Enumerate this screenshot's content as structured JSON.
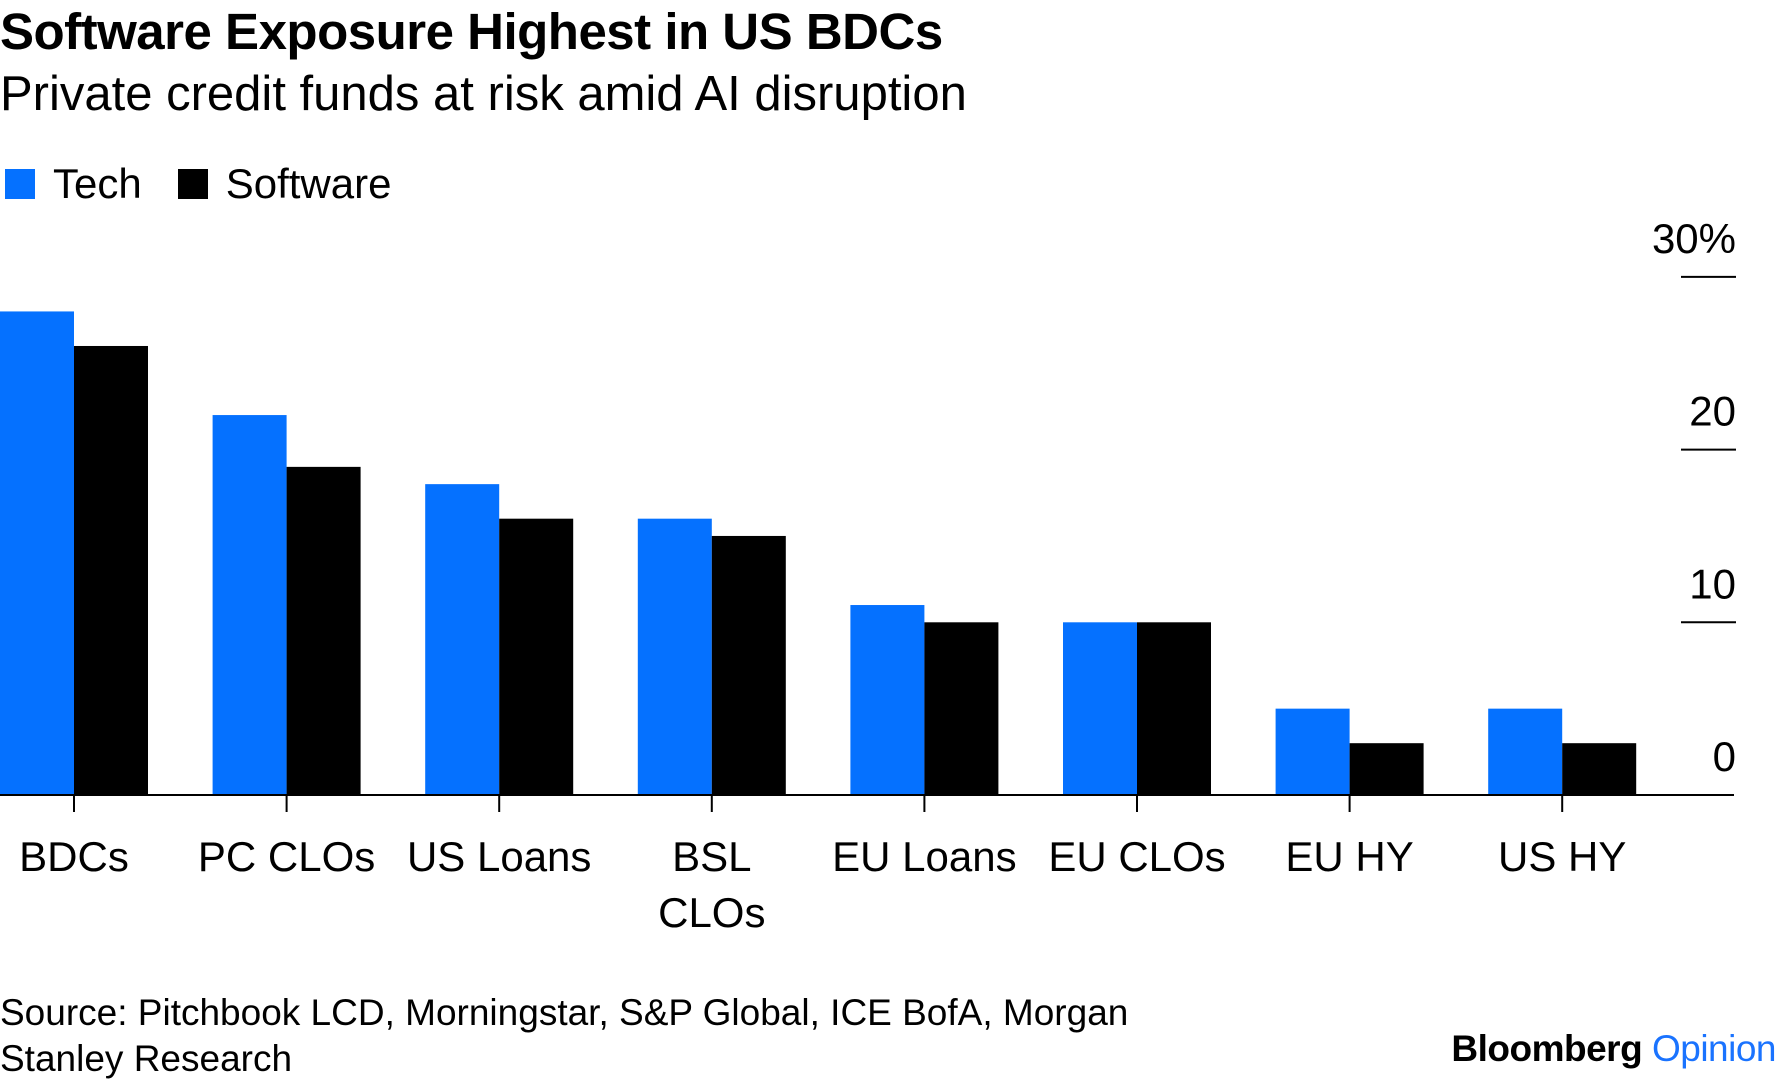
{
  "chart_data": {
    "type": "bar",
    "title": "Software Exposure Highest in US BDCs",
    "subtitle": "Private credit funds at risk amid AI disruption",
    "categories": [
      [
        "BDCs"
      ],
      [
        "PC CLOs"
      ],
      [
        "US Loans"
      ],
      [
        "BSL",
        "CLOs"
      ],
      [
        "EU Loans"
      ],
      [
        "EU CLOs"
      ],
      [
        "EU HY"
      ],
      [
        "US HY"
      ]
    ],
    "series": [
      {
        "name": "Tech",
        "color": "#0571ff",
        "values": [
          28,
          22,
          18,
          16,
          11,
          10,
          5,
          5
        ]
      },
      {
        "name": "Software",
        "color": "#000000",
        "values": [
          26,
          19,
          16,
          15,
          10,
          10,
          3,
          3
        ]
      }
    ],
    "yticks": [
      "0",
      "10",
      "20",
      "30%"
    ],
    "ytick_values": [
      0,
      10,
      20,
      30
    ],
    "ylim": [
      0,
      30
    ],
    "yaxis_position": "right",
    "legend_position": "top-left",
    "source": "Source: Pitchbook LCD, Morningstar, S&P Global, ICE BofA, Morgan Stanley Research",
    "brand": {
      "name": "Bloomberg",
      "section": "Opinion"
    }
  }
}
